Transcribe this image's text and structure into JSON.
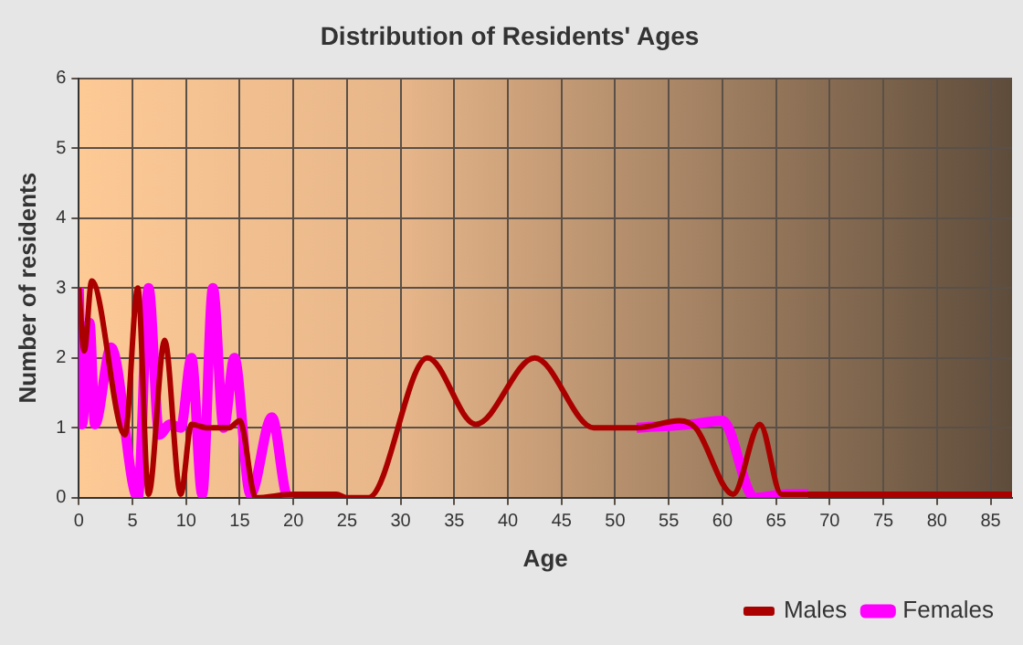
{
  "chart_data": {
    "type": "line",
    "title": "Distribution of Residents' Ages",
    "xlabel": "Age",
    "ylabel": "Number of residents",
    "xlim": [
      0,
      87
    ],
    "xticks": [
      0,
      5,
      10,
      15,
      20,
      25,
      30,
      35,
      40,
      45,
      50,
      55,
      60,
      65,
      70,
      75,
      80,
      85
    ],
    "ylim": [
      0,
      6
    ],
    "yticks": [
      0,
      1,
      2,
      3,
      4,
      5,
      6
    ],
    "grid": true,
    "legend": "bottom right",
    "marker": "none",
    "line_style": "solid",
    "series": [
      {
        "name": "Males",
        "color": "#aa0000",
        "x": [
          0,
          0.5,
          1.2,
          4.3,
          5.5,
          6.5,
          8,
          9.5,
          10.5,
          12,
          14,
          15,
          16.5,
          20,
          24,
          25,
          27,
          32.5,
          37,
          42.5,
          48,
          52,
          56,
          57.5,
          61,
          63.5,
          65.5,
          70,
          87
        ],
        "values": [
          3,
          2.1,
          3.1,
          0.9,
          3,
          0.05,
          2.25,
          0.05,
          1.05,
          1,
          1,
          1.1,
          0,
          0.05,
          0.05,
          0,
          0,
          2,
          1.05,
          2,
          1,
          1,
          1.1,
          1,
          0.05,
          1.05,
          0.05,
          0.05,
          0.05
        ]
      },
      {
        "name": "Females",
        "color": "#ff00ff",
        "x": [
          0,
          0.3,
          1,
          1.5,
          3,
          5.5,
          6.5,
          7.5,
          8.5,
          9.5,
          10.5,
          11.5,
          12.5,
          13.5,
          14.5,
          16,
          18,
          19.5,
          20,
          35,
          52,
          57,
          60,
          63,
          66,
          68
        ],
        "values": [
          3,
          1.05,
          2.5,
          1.05,
          2.15,
          0,
          3,
          0.9,
          1.05,
          1,
          2,
          0.05,
          3,
          1,
          2,
          0.05,
          1.15,
          0,
          0,
          null,
          1,
          1.05,
          1.1,
          0,
          0.05,
          0.05
        ]
      }
    ]
  }
}
